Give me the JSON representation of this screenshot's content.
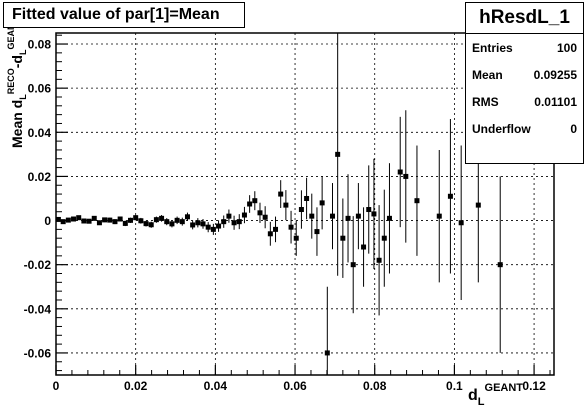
{
  "header": {
    "title": "Fitted value of par[1]=Mean"
  },
  "stats": {
    "name": "hResdL_1",
    "rows": [
      {
        "label": "Entries",
        "value": "100"
      },
      {
        "label": "Mean",
        "value": "0.09255"
      },
      {
        "label": "RMS",
        "value": "0.01101"
      },
      {
        "label": "Underflow",
        "value": "0"
      }
    ]
  },
  "chart_data": {
    "type": "scatter",
    "title": "Fitted value of par[1]=Mean",
    "xlabel": "d_L^{GEANT}",
    "ylabel": "Mean d_L^{RECO}-d_L^{GEANT}",
    "xlim": [
      0,
      0.125
    ],
    "ylim": [
      -0.07,
      0.085
    ],
    "x_ticks": [
      "0",
      "0.02",
      "0.04",
      "0.06",
      "0.08",
      "0.1",
      "0.12"
    ],
    "y_ticks": [
      "-0.06",
      "-0.04",
      "-0.02",
      "0",
      "0.02",
      "0.04",
      "0.06",
      "0.08"
    ],
    "grid": true,
    "points": [
      {
        "x": 0.0006,
        "y": 0.0005,
        "err": 0.0008
      },
      {
        "x": 0.0018,
        "y": -0.0005,
        "err": 0.0008
      },
      {
        "x": 0.0031,
        "y": 0.0002,
        "err": 0.0008
      },
      {
        "x": 0.0044,
        "y": 0.0007,
        "err": 0.0009
      },
      {
        "x": 0.0057,
        "y": 0.0013,
        "err": 0.0009
      },
      {
        "x": 0.007,
        "y": -0.0002,
        "err": 0.0009
      },
      {
        "x": 0.0083,
        "y": -0.0003,
        "err": 0.001
      },
      {
        "x": 0.0096,
        "y": 0.001,
        "err": 0.001
      },
      {
        "x": 0.0109,
        "y": -0.001,
        "err": 0.001
      },
      {
        "x": 0.0122,
        "y": 0.0003,
        "err": 0.001
      },
      {
        "x": 0.0135,
        "y": 0.0002,
        "err": 0.0011
      },
      {
        "x": 0.0148,
        "y": -0.0005,
        "err": 0.0011
      },
      {
        "x": 0.0161,
        "y": 0.0007,
        "err": 0.0011
      },
      {
        "x": 0.0174,
        "y": -0.0013,
        "err": 0.0012
      },
      {
        "x": 0.0187,
        "y": 0.0001,
        "err": 0.0012
      },
      {
        "x": 0.02,
        "y": 0.0013,
        "err": 0.0012
      },
      {
        "x": 0.0213,
        "y": -0.0001,
        "err": 0.0013
      },
      {
        "x": 0.0226,
        "y": -0.0014,
        "err": 0.0013
      },
      {
        "x": 0.0239,
        "y": -0.0019,
        "err": 0.0014
      },
      {
        "x": 0.0252,
        "y": 0.0004,
        "err": 0.0014
      },
      {
        "x": 0.0265,
        "y": 0.001,
        "err": 0.0015
      },
      {
        "x": 0.0278,
        "y": -0.0005,
        "err": 0.0016
      },
      {
        "x": 0.0291,
        "y": -0.0015,
        "err": 0.0016
      },
      {
        "x": 0.0304,
        "y": 0.0001,
        "err": 0.0017
      },
      {
        "x": 0.0317,
        "y": -0.0005,
        "err": 0.0018
      },
      {
        "x": 0.033,
        "y": 0.0017,
        "err": 0.0019
      },
      {
        "x": 0.0343,
        "y": -0.002,
        "err": 0.002
      },
      {
        "x": 0.0356,
        "y": -0.001,
        "err": 0.0021
      },
      {
        "x": 0.0369,
        "y": -0.0015,
        "err": 0.0022
      },
      {
        "x": 0.0382,
        "y": -0.003,
        "err": 0.0023
      },
      {
        "x": 0.0395,
        "y": -0.004,
        "err": 0.0025
      },
      {
        "x": 0.0408,
        "y": -0.0025,
        "err": 0.0026
      },
      {
        "x": 0.0421,
        "y": -0.0005,
        "err": 0.0028
      },
      {
        "x": 0.0434,
        "y": 0.002,
        "err": 0.003
      },
      {
        "x": 0.0447,
        "y": -0.001,
        "err": 0.0032
      },
      {
        "x": 0.046,
        "y": -0.0005,
        "err": 0.0034
      },
      {
        "x": 0.0473,
        "y": 0.0025,
        "err": 0.0037
      },
      {
        "x": 0.0486,
        "y": 0.0075,
        "err": 0.004
      },
      {
        "x": 0.0499,
        "y": 0.009,
        "err": 0.0043
      },
      {
        "x": 0.0512,
        "y": 0.0035,
        "err": 0.0046
      },
      {
        "x": 0.0525,
        "y": 0.0015,
        "err": 0.005
      },
      {
        "x": 0.0538,
        "y": -0.006,
        "err": 0.0054
      },
      {
        "x": 0.0551,
        "y": -0.004,
        "err": 0.0058
      },
      {
        "x": 0.0564,
        "y": 0.012,
        "err": 0.0063
      },
      {
        "x": 0.0577,
        "y": 0.007,
        "err": 0.0068
      },
      {
        "x": 0.059,
        "y": -0.003,
        "err": 0.0074
      },
      {
        "x": 0.0603,
        "y": -0.008,
        "err": 0.008
      },
      {
        "x": 0.0616,
        "y": 0.005,
        "err": 0.0087
      },
      {
        "x": 0.0629,
        "y": 0.01,
        "err": 0.0094
      },
      {
        "x": 0.0642,
        "y": 0.002,
        "err": 0.0102
      },
      {
        "x": 0.0655,
        "y": -0.005,
        "err": 0.011
      },
      {
        "x": 0.0668,
        "y": 0.008,
        "err": 0.012
      },
      {
        "x": 0.0681,
        "y": -0.06,
        "err": 0.03
      },
      {
        "x": 0.0694,
        "y": 0.002,
        "err": 0.015
      },
      {
        "x": 0.0707,
        "y": 0.03,
        "err": 0.055
      },
      {
        "x": 0.072,
        "y": -0.008,
        "err": 0.018
      },
      {
        "x": 0.0733,
        "y": 0.001,
        "err": 0.02
      },
      {
        "x": 0.0746,
        "y": -0.02,
        "err": 0.022
      },
      {
        "x": 0.0759,
        "y": 0.002,
        "err": 0.015
      },
      {
        "x": 0.0772,
        "y": -0.012,
        "err": 0.018
      },
      {
        "x": 0.0785,
        "y": 0.005,
        "err": 0.02
      },
      {
        "x": 0.0798,
        "y": 0.003,
        "err": 0.025
      },
      {
        "x": 0.0811,
        "y": -0.018,
        "err": 0.025
      },
      {
        "x": 0.0824,
        "y": -0.008,
        "err": 0.022
      },
      {
        "x": 0.0837,
        "y": 0.001,
        "err": 0.025
      },
      {
        "x": 0.0864,
        "y": 0.022,
        "err": 0.025
      },
      {
        "x": 0.0878,
        "y": 0.02,
        "err": 0.03
      },
      {
        "x": 0.0906,
        "y": 0.009,
        "err": 0.025
      },
      {
        "x": 0.0962,
        "y": 0.002,
        "err": 0.03
      },
      {
        "x": 0.099,
        "y": 0.011,
        "err": 0.035
      },
      {
        "x": 0.1017,
        "y": -0.001,
        "err": 0.035
      },
      {
        "x": 0.106,
        "y": 0.007,
        "err": 0.035
      },
      {
        "x": 0.1115,
        "y": -0.02,
        "err": 0.04
      }
    ]
  }
}
